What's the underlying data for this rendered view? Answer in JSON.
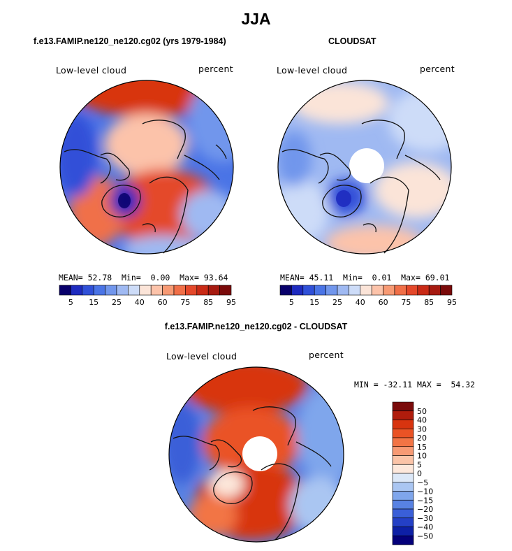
{
  "main_title": "JJA",
  "panels": [
    {
      "title": "f.e13.FAMIP.ne120_ne120.cg02 (yrs 1979-1984)",
      "variable": "Low-level cloud",
      "units": "percent",
      "stats": {
        "mean_label": "MEAN=",
        "mean": "52.78",
        "min_label": "Min=",
        "min": "0.00",
        "max_label": "Max=",
        "max": "93.64"
      },
      "colorbar": {
        "labels": [
          "5",
          "15",
          "25",
          "40",
          "60",
          "75",
          "85",
          "95"
        ],
        "colors": [
          "#08006b",
          "#1e2bbf",
          "#3050d8",
          "#4a74e6",
          "#7196ec",
          "#9fb9f2",
          "#cddcf8",
          "#fbe4d8",
          "#fcc3aa",
          "#f79a74",
          "#f06f48",
          "#e4482a",
          "#c92a16",
          "#a61a10",
          "#7a0a0a"
        ]
      }
    },
    {
      "title": "CLOUDSAT",
      "variable": "Low-level cloud",
      "units": "percent",
      "stats": {
        "mean_label": "MEAN=",
        "mean": "45.11",
        "min_label": "Min=",
        "min": "0.01",
        "max_label": "Max=",
        "max": "69.01"
      },
      "colorbar": {
        "labels": [
          "5",
          "15",
          "25",
          "40",
          "60",
          "75",
          "85",
          "95"
        ],
        "colors": [
          "#08006b",
          "#1e2bbf",
          "#3050d8",
          "#4a74e6",
          "#7196ec",
          "#9fb9f2",
          "#cddcf8",
          "#fbe4d8",
          "#fcc3aa",
          "#f79a74",
          "#f06f48",
          "#e4482a",
          "#c92a16",
          "#a61a10",
          "#7a0a0a"
        ]
      }
    },
    {
      "title": "f.e13.FAMIP.ne120_ne120.cg02 - CLOUDSAT",
      "variable": "Low-level cloud",
      "units": "percent",
      "stats_text": "MIN = -32.11 MAX =  54.32",
      "colorbar": {
        "labels": [
          "50",
          "40",
          "30",
          "20",
          "15",
          "10",
          "5",
          "0",
          "−5",
          "−10",
          "−15",
          "−20",
          "−30",
          "−40",
          "−50"
        ],
        "colors": [
          "#7a0a0a",
          "#b01c0c",
          "#d8340f",
          "#ea5325",
          "#f27445",
          "#f79a74",
          "#fbc4a8",
          "#fde8dc",
          "#dce8f8",
          "#aac6f2",
          "#7fa6ec",
          "#5882e3",
          "#3a5fd8",
          "#2440c6",
          "#0d20a6",
          "#04007a"
        ]
      }
    }
  ]
}
